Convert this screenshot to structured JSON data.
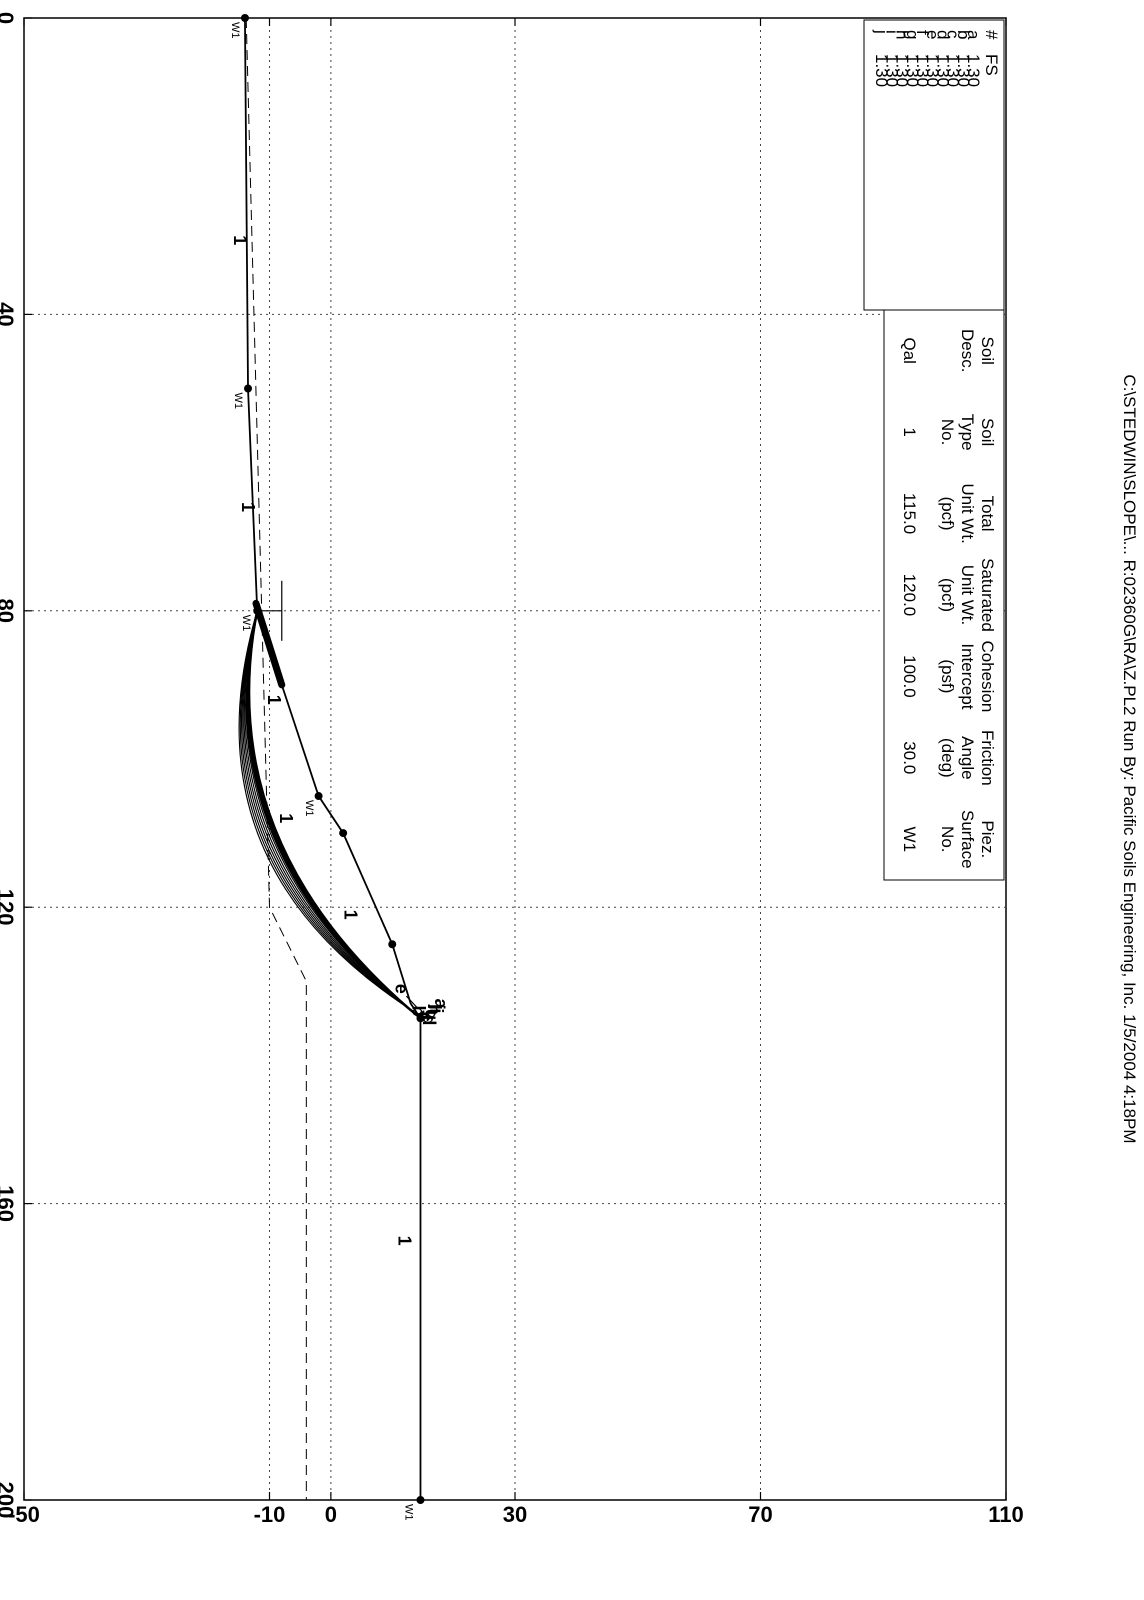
{
  "title_text": "C:\\STEDWIN\\SLOPE\\... R:02360G\\RA\\Z.PL2   Run By: Pacific Soils Engineering, Inc.   1/5/2004   4:18PM",
  "chart_data": {
    "type": "line",
    "xlim": [
      0,
      200
    ],
    "ylim": [
      -50,
      110
    ],
    "x_ticks": [
      "0",
      "40",
      "80",
      "120",
      "160",
      "200"
    ],
    "y_ticks": [
      "110",
      "70",
      "30",
      "0",
      "-10",
      "-50"
    ],
    "x_tick_values": [
      0,
      40,
      80,
      120,
      160,
      200
    ],
    "y_tick_values": [
      110,
      70,
      30,
      0,
      -10,
      -50
    ],
    "grid": true,
    "ground_surface": [
      [
        0,
        -14
      ],
      [
        50,
        -13.5
      ],
      [
        80,
        -12
      ],
      [
        90,
        -8
      ],
      [
        105,
        -2
      ],
      [
        110,
        2
      ],
      [
        125,
        10
      ],
      [
        133,
        13
      ],
      [
        135,
        14.6
      ],
      [
        200,
        14.6
      ]
    ],
    "ground_points": [
      [
        0,
        -14
      ],
      [
        50,
        -13.5
      ],
      [
        80,
        -12
      ],
      [
        105,
        -2
      ],
      [
        110,
        2
      ],
      [
        125,
        10
      ],
      [
        135,
        14.6
      ],
      [
        200,
        14.6
      ]
    ],
    "piezometric_surface": [
      [
        0,
        -13.8
      ],
      [
        120,
        -10
      ],
      [
        130,
        -4
      ],
      [
        200,
        -4
      ]
    ],
    "piezometric_label": "W1",
    "piezometric_markers": [
      [
        0,
        -13.8
      ],
      [
        50,
        -13.3
      ],
      [
        80,
        -12
      ],
      [
        105,
        -1.8
      ],
      [
        200,
        14.4
      ]
    ],
    "soil_markers": [
      [
        30,
        -12.5
      ],
      [
        66,
        -11.2
      ],
      [
        92,
        -7
      ],
      [
        108,
        -5
      ],
      [
        121,
        5.5
      ],
      [
        165,
        14.3
      ]
    ],
    "soil_marker_label": "1",
    "failure_surfaces": [
      {
        "label": "a",
        "fs": "1.30"
      },
      {
        "label": "b",
        "fs": "1.30"
      },
      {
        "label": "c",
        "fs": "1.30"
      },
      {
        "label": "d",
        "fs": "1.30"
      },
      {
        "label": "e",
        "fs": "1.30"
      },
      {
        "label": "f",
        "fs": "1.30"
      },
      {
        "label": "g",
        "fs": "1.30"
      },
      {
        "label": "h",
        "fs": "1.30"
      },
      {
        "label": "i",
        "fs": "1.30"
      },
      {
        "label": "j",
        "fs": "1.30"
      }
    ],
    "failure_arc": {
      "x_start": 80,
      "x_end": 135,
      "sag": [
        2,
        4
      ]
    },
    "crest_labels": [
      [
        "a",
        133,
        17
      ],
      [
        "j",
        133.5,
        16.5
      ],
      [
        "i",
        134,
        16.2
      ],
      [
        "h",
        133.8,
        15.8
      ],
      [
        "g",
        134.5,
        15.4
      ],
      [
        "d",
        135.2,
        15
      ],
      [
        "c",
        134.8,
        14.5
      ],
      [
        "b",
        134,
        13.3
      ],
      [
        "e",
        131,
        10.5
      ]
    ],
    "arrows": [
      [
        80,
        -11.5,
        80,
        -8
      ],
      [
        132,
        12.3,
        133.5,
        14
      ]
    ],
    "fs_legend": {
      "header": [
        "#",
        "FS"
      ]
    },
    "soil_table": {
      "headers": [
        [
          "Soil",
          "Desc."
        ],
        [
          "Soil",
          "Type",
          "No."
        ],
        [
          "Total",
          "Unit Wt.",
          "(pcf)"
        ],
        [
          "Saturated",
          "Unit Wt.",
          "(pcf)"
        ],
        [
          "Cohesion",
          "Intercept",
          "(psf)"
        ],
        [
          "Friction",
          "Angle",
          "(deg)"
        ],
        [
          "Piez.",
          "Surface",
          "No."
        ]
      ],
      "row": [
        "Qal",
        "1",
        "115.0",
        "120.0",
        "100.0",
        "30.0",
        "W1"
      ]
    }
  }
}
